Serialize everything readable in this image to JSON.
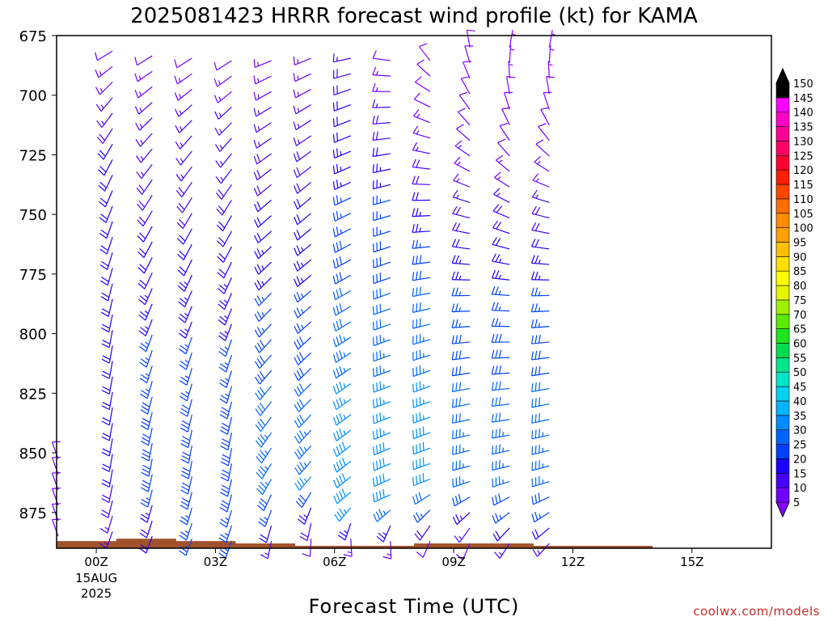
{
  "chart_data": {
    "type": "wind-barb time-height profile",
    "title": "2025081423 HRRR forecast wind profile (kt) for KAMA",
    "xlabel": "Forecast Time (UTC)",
    "ylabel": "",
    "credit": "coolwx.com/models",
    "y_axis": {
      "scale": "pressure (hPa), inverted",
      "ylim": [
        890,
        675
      ],
      "ticks": [
        675,
        700,
        725,
        750,
        775,
        800,
        825,
        850,
        875
      ]
    },
    "x_axis": {
      "ticks": [
        {
          "label": "00Z",
          "sub1": "15AUG",
          "sub2": "2025",
          "hour": 1
        },
        {
          "label": "03Z",
          "hour": 4
        },
        {
          "label": "06Z",
          "hour": 7
        },
        {
          "label": "09Z",
          "hour": 10
        },
        {
          "label": "12Z",
          "hour": 13
        },
        {
          "label": "15Z",
          "hour": 16
        }
      ],
      "range_hours": [
        0,
        18
      ]
    },
    "colorbar": {
      "levels": [
        5,
        10,
        15,
        20,
        25,
        30,
        35,
        40,
        45,
        50,
        55,
        60,
        65,
        70,
        75,
        80,
        85,
        90,
        95,
        100,
        105,
        110,
        115,
        120,
        125,
        130,
        135,
        140,
        145,
        150
      ],
      "colors": [
        "#8a00ff",
        "#7000ff",
        "#4600ff",
        "#1e00ff",
        "#0040ff",
        "#0064ff",
        "#008cff",
        "#00b4ff",
        "#00d2f0",
        "#00e6c8",
        "#00e68c",
        "#00dc50",
        "#1ee61e",
        "#5aeb00",
        "#a0f000",
        "#e6f500",
        "#ffff00",
        "#ffe000",
        "#ffc000",
        "#ffa000",
        "#ff8c00",
        "#ff6e00",
        "#ff4600",
        "#ff1e00",
        "#ff0032",
        "#ff0064",
        "#ff0096",
        "#ff00c8",
        "#ff00ff",
        "#000000"
      ]
    },
    "terrain": {
      "color": "#a0522d",
      "surface_pressure": [
        887,
        886,
        887,
        888,
        889,
        889,
        888,
        888,
        889,
        889,
        890,
        890
      ]
    },
    "wind_columns": [
      {
        "hour": 0,
        "surface_p": 887,
        "top_p": 850,
        "dir": 340,
        "spd": 10
      },
      {
        "hour": 1,
        "surface_p": 885,
        "profile": [
          [
            885,
            200,
            15
          ],
          [
            860,
            190,
            20
          ],
          [
            800,
            190,
            20
          ],
          [
            750,
            200,
            20
          ],
          [
            720,
            210,
            20
          ],
          [
            700,
            220,
            15
          ],
          [
            680,
            240,
            12
          ]
        ]
      },
      {
        "hour": 2,
        "surface_p": 887,
        "profile": [
          [
            887,
            200,
            20
          ],
          [
            850,
            190,
            30
          ],
          [
            800,
            200,
            25
          ],
          [
            750,
            210,
            20
          ],
          [
            720,
            220,
            15
          ],
          [
            700,
            230,
            15
          ],
          [
            680,
            240,
            10
          ]
        ]
      },
      {
        "hour": 3,
        "surface_p": 888,
        "profile": [
          [
            888,
            200,
            25
          ],
          [
            850,
            190,
            30
          ],
          [
            800,
            200,
            25
          ],
          [
            750,
            210,
            20
          ],
          [
            720,
            220,
            15
          ],
          [
            700,
            230,
            15
          ],
          [
            680,
            240,
            10
          ]
        ]
      },
      {
        "hour": 4,
        "surface_p": 889,
        "profile": [
          [
            889,
            200,
            25
          ],
          [
            850,
            190,
            30
          ],
          [
            800,
            200,
            25
          ],
          [
            750,
            210,
            20
          ],
          [
            720,
            220,
            15
          ],
          [
            700,
            230,
            15
          ],
          [
            680,
            240,
            10
          ]
        ]
      },
      {
        "hour": 5,
        "surface_p": 889,
        "profile": [
          [
            889,
            190,
            15
          ],
          [
            860,
            210,
            35
          ],
          [
            820,
            220,
            30
          ],
          [
            780,
            225,
            25
          ],
          [
            740,
            230,
            20
          ],
          [
            700,
            240,
            15
          ],
          [
            680,
            250,
            12
          ]
        ]
      },
      {
        "hour": 6,
        "surface_p": 888,
        "profile": [
          [
            888,
            180,
            10
          ],
          [
            860,
            220,
            35
          ],
          [
            820,
            225,
            30
          ],
          [
            780,
            230,
            25
          ],
          [
            740,
            230,
            20
          ],
          [
            700,
            240,
            15
          ],
          [
            680,
            250,
            12
          ]
        ]
      },
      {
        "hour": 7,
        "surface_p": 888,
        "profile": [
          [
            888,
            170,
            10
          ],
          [
            870,
            230,
            40
          ],
          [
            820,
            235,
            35
          ],
          [
            780,
            240,
            30
          ],
          [
            740,
            245,
            25
          ],
          [
            700,
            250,
            20
          ],
          [
            680,
            260,
            15
          ]
        ]
      },
      {
        "hour": 8,
        "surface_p": 889,
        "profile": [
          [
            889,
            170,
            10
          ],
          [
            870,
            245,
            40
          ],
          [
            820,
            250,
            35
          ],
          [
            780,
            250,
            30
          ],
          [
            740,
            255,
            25
          ],
          [
            700,
            270,
            15
          ],
          [
            680,
            280,
            10
          ]
        ]
      },
      {
        "hour": 9,
        "surface_p": 889,
        "profile": [
          [
            889,
            200,
            10
          ],
          [
            860,
            250,
            40
          ],
          [
            820,
            250,
            35
          ],
          [
            780,
            260,
            30
          ],
          [
            740,
            270,
            20
          ],
          [
            700,
            300,
            10
          ],
          [
            680,
            330,
            8
          ]
        ]
      },
      {
        "hour": 10,
        "surface_p": 890,
        "profile": [
          [
            890,
            200,
            10
          ],
          [
            860,
            255,
            35
          ],
          [
            820,
            260,
            30
          ],
          [
            780,
            270,
            25
          ],
          [
            740,
            290,
            15
          ],
          [
            700,
            330,
            10
          ],
          [
            680,
            350,
            8
          ]
        ]
      },
      {
        "hour": 11,
        "surface_p": 890,
        "profile": [
          [
            890,
            210,
            15
          ],
          [
            860,
            255,
            35
          ],
          [
            820,
            265,
            30
          ],
          [
            780,
            275,
            25
          ],
          [
            740,
            300,
            15
          ],
          [
            700,
            350,
            8
          ],
          [
            680,
            10,
            5
          ]
        ]
      },
      {
        "hour": 12,
        "surface_p": 890,
        "profile": [
          [
            890,
            220,
            15
          ],
          [
            860,
            255,
            35
          ],
          [
            820,
            260,
            30
          ],
          [
            780,
            270,
            25
          ],
          [
            740,
            290,
            15
          ],
          [
            700,
            350,
            8
          ],
          [
            680,
            10,
            5
          ]
        ]
      }
    ]
  }
}
